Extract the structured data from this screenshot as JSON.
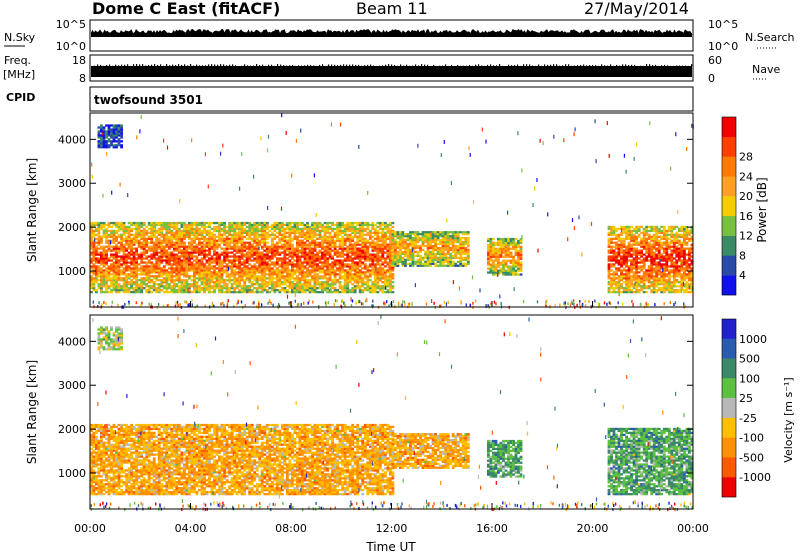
{
  "header": {
    "station": "Dome C East (fitACF)",
    "beam": "Beam 11",
    "date": "27/May/2014"
  },
  "summary": {
    "nsky_label": "N.Sky",
    "nsky_ticks": [
      "10^5",
      "10^0"
    ],
    "nsearch_label": "N.Search",
    "nsearch_ticks": [
      "10^5",
      "10^0"
    ],
    "freq_label": "Freq.",
    "freq_unit": "[MHz]",
    "freq_ticks": [
      "18",
      "8"
    ],
    "nave_label": "Nave",
    "nave_ticks": [
      "60",
      "0"
    ],
    "cpid_label": "CPID",
    "cpid_value": "twofsound 3501"
  },
  "colors": {
    "power": [
      "#1010ee",
      "#2a4aa8",
      "#3a8a66",
      "#78c040",
      "#f4cc00",
      "#ffa020",
      "#ff7a00",
      "#ff3e00",
      "#f20000"
    ],
    "velocity": [
      "#2020d0",
      "#2a5cae",
      "#3a8868",
      "#5cc040",
      "#b8b8b8",
      "#ffbe00",
      "#ff9000",
      "#ff5a00",
      "#ee0000"
    ]
  },
  "chart_data": [
    {
      "type": "heatmap",
      "panel": "power",
      "ylabel": "Slant Range [km]",
      "xlabel": "Time UT",
      "x_ticks": [
        "00:00",
        "04:00",
        "08:00",
        "12:00",
        "16:00",
        "20:00",
        "00:00"
      ],
      "xlim": [
        0,
        24
      ],
      "y_ticks": [
        "1000",
        "2000",
        "3000",
        "4000"
      ],
      "ylim": [
        180,
        4600
      ],
      "colorbar": {
        "label": "Power [dB]",
        "ticks": [
          "4",
          "8",
          "12",
          "16",
          "20",
          "24",
          "28"
        ]
      },
      "echo_regions": [
        {
          "t": [
            0.0,
            12.0
          ],
          "range": [
            500,
            2100
          ],
          "level": 6.5
        },
        {
          "t": [
            12.0,
            15.0
          ],
          "range": [
            1100,
            1900
          ],
          "level": 5.0
        },
        {
          "t": [
            15.8,
            17.2
          ],
          "range": [
            900,
            1750
          ],
          "level": 5.5
        },
        {
          "t": [
            20.6,
            24.0
          ],
          "range": [
            500,
            2000
          ],
          "level": 7.0
        },
        {
          "t": [
            0.3,
            1.3
          ],
          "range": [
            3800,
            4300
          ],
          "level": 1.0
        }
      ]
    },
    {
      "type": "heatmap",
      "panel": "velocity",
      "ylabel": "Slant Range [km]",
      "xlabel": "Time UT",
      "x_ticks": [
        "00:00",
        "04:00",
        "08:00",
        "12:00",
        "16:00",
        "20:00",
        "00:00"
      ],
      "xlim": [
        0,
        24
      ],
      "y_ticks": [
        "1000",
        "2000",
        "3000",
        "4000"
      ],
      "ylim": [
        180,
        4600
      ],
      "colorbar": {
        "label": "Velocity [m s⁻¹]",
        "ticks": [
          "1000",
          "500",
          "100",
          "25",
          "-25",
          "-100",
          "-500",
          "-1000"
        ]
      },
      "echo_regions": [
        {
          "t": [
            0.0,
            12.0
          ],
          "range": [
            500,
            2100
          ],
          "velocity": -100
        },
        {
          "t": [
            12.0,
            15.0
          ],
          "range": [
            1100,
            1900
          ],
          "velocity": -100
        },
        {
          "t": [
            15.8,
            17.2
          ],
          "range": [
            900,
            1750
          ],
          "velocity": 100
        },
        {
          "t": [
            20.6,
            24.0
          ],
          "range": [
            500,
            2000
          ],
          "velocity": 100
        },
        {
          "t": [
            0.3,
            1.3
          ],
          "range": [
            3800,
            4300
          ],
          "velocity": 0
        }
      ]
    }
  ]
}
